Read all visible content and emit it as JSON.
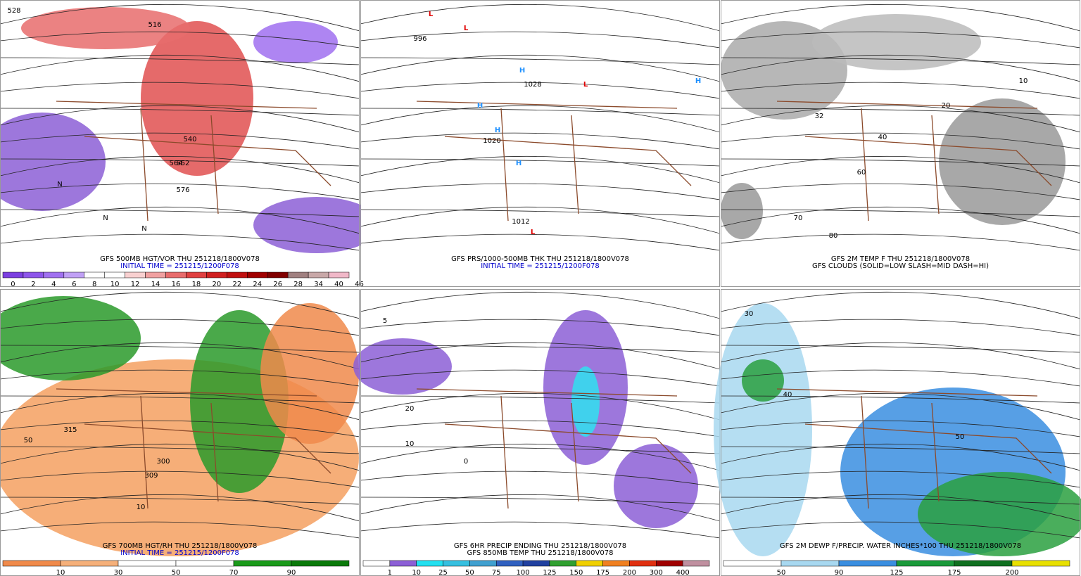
{
  "panels": [
    {
      "caption": [
        "GFS 500MB HGT/VOR THU 251218/1800V078",
        "INITIAL TIME = 251215/1200F078"
      ],
      "legend": {
        "labels": [
          "0",
          "2",
          "4",
          "6",
          "8",
          "10",
          "12",
          "14",
          "16",
          "18",
          "20",
          "22",
          "24",
          "26",
          "28",
          "34",
          "40",
          "46"
        ],
        "colors": [
          "#7b3fe0",
          "#8d55ea",
          "#a070f0",
          "#c0a0f5",
          "#ffffff",
          "#ffffff",
          "#f8d0d0",
          "#f0a0a0",
          "#e86c6c",
          "#e04040",
          "#d02020",
          "#c01010",
          "#a00000",
          "#800000",
          "#a08080",
          "#c8a8a8",
          "#f0b8c8"
        ]
      },
      "labels": [
        "516",
        "528",
        "540",
        "552",
        "564",
        "576",
        "N",
        "N",
        "N"
      ]
    },
    {
      "caption": [
        "GFS PRS/1000-500MB THK THU 251218/1800V078",
        "INITIAL TIME = 251215/1200F078"
      ],
      "labels": [
        "H",
        "H",
        "H",
        "H",
        "H",
        "L",
        "L",
        "L",
        "L",
        "1020",
        "1012",
        "996",
        "1028"
      ]
    },
    {
      "caption": [
        "GFS 2M TEMP F THU 251218/1800V078",
        "GFS CLOUDS (SOLID=LOW SLASH=MID DASH=HI)"
      ],
      "labels": [
        "10",
        "20",
        "32",
        "40",
        "60",
        "70",
        "80"
      ]
    },
    {
      "caption": [
        "GFS 700MB HGT/RH THU 251218/1800V078",
        "INITIAL TIME = 251215/1200F078"
      ],
      "legend": {
        "labels": [
          "10",
          "30",
          "50",
          "70",
          "90"
        ],
        "colors": [
          "#f08a4b",
          "#f5b07a",
          "#ffffff",
          "#ffffff",
          "#1a9a1a",
          "#0a7a0a"
        ]
      },
      "labels": [
        "315",
        "309",
        "300",
        "50",
        "10"
      ]
    },
    {
      "caption": [
        "GFS 6HR PRECIP ENDING THU 251218/1800V078",
        "GFS 850MB TEMP THU 251218/1800V078"
      ],
      "legend": {
        "labels": [
          "1",
          "10",
          "25",
          "50",
          "75",
          "100",
          "125",
          "150",
          "175",
          "200",
          "300",
          "400"
        ],
        "colors": [
          "#ffffff",
          "#8c5fd6",
          "#23e0f0",
          "#36c0e0",
          "#40a0d0",
          "#3060c0",
          "#2040a0",
          "#30a030",
          "#f0d000",
          "#f08020",
          "#e03010",
          "#a00000",
          "#c090a0"
        ]
      },
      "labels": [
        "10",
        "20",
        "5",
        "0"
      ]
    },
    {
      "caption": [
        "GFS 2M DEWP F/PRECIP. WATER INCHES*100 THU 251218/1800V078"
      ],
      "legend": {
        "labels": [
          "50",
          "90",
          "125",
          "175",
          "200"
        ],
        "colors": [
          "#ffffff",
          "#a8d8f0",
          "#3a8ee0",
          "#1a9a3a",
          "#107020",
          "#e8e000"
        ]
      },
      "labels": [
        "30",
        "40",
        "50"
      ]
    }
  ]
}
